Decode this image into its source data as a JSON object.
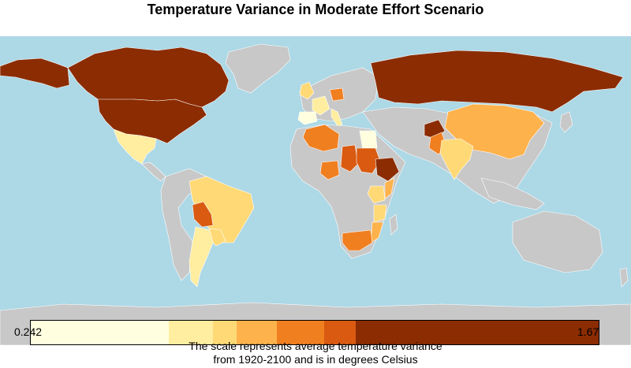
{
  "title": "Temperature Variance in Moderate Effort Scenario",
  "colors": {
    "ocean": "#add8e6",
    "no_data": "#c8c8c8",
    "border": "#ffffff"
  },
  "legend": {
    "min_label": "0.242",
    "max_label": "1.67",
    "bins": [
      {
        "from": 0.242,
        "to": 0.59,
        "color": "#ffffe0"
      },
      {
        "from": 0.59,
        "to": 0.7,
        "color": "#ffeda0"
      },
      {
        "from": 0.7,
        "to": 0.76,
        "color": "#fed976"
      },
      {
        "from": 0.76,
        "to": 0.86,
        "color": "#feb24c"
      },
      {
        "from": 0.86,
        "to": 0.98,
        "color": "#f07f20"
      },
      {
        "from": 0.98,
        "to": 1.06,
        "color": "#d95a10"
      },
      {
        "from": 1.06,
        "to": 1.67,
        "color": "#8b2c02"
      }
    ]
  },
  "caption": {
    "line1": "The scale represents average temperature variance",
    "line2": "from 1920-2100 and is in degrees Celsius"
  },
  "regions": [
    {
      "name": "Canada",
      "level": 6
    },
    {
      "name": "United States",
      "level": 6
    },
    {
      "name": "Alaska",
      "level": 6
    },
    {
      "name": "Russia",
      "level": 6
    },
    {
      "name": "Mexico",
      "level": 1
    },
    {
      "name": "Brazil",
      "level": 2
    },
    {
      "name": "Bolivia",
      "level": 5
    },
    {
      "name": "Argentina",
      "level": 1
    },
    {
      "name": "Paraguay",
      "level": 2
    },
    {
      "name": "China",
      "level": 3
    },
    {
      "name": "India",
      "level": 2
    },
    {
      "name": "Afghanistan",
      "level": 6
    },
    {
      "name": "Pakistan",
      "level": 4
    },
    {
      "name": "Algeria",
      "level": 4
    },
    {
      "name": "Egypt",
      "level": 0
    },
    {
      "name": "Chad",
      "level": 5
    },
    {
      "name": "Sudan",
      "level": 5
    },
    {
      "name": "Ethiopia",
      "level": 6
    },
    {
      "name": "Nigeria",
      "level": 4
    },
    {
      "name": "Kenya",
      "level": 2
    },
    {
      "name": "Tanzania",
      "level": 2
    },
    {
      "name": "Mozambique",
      "level": 3
    },
    {
      "name": "South Africa",
      "level": 4
    },
    {
      "name": "France",
      "level": 1
    },
    {
      "name": "Spain",
      "level": 0
    },
    {
      "name": "Italy",
      "level": 1
    },
    {
      "name": "Poland",
      "level": 4
    },
    {
      "name": "Ireland",
      "level": 2
    },
    {
      "name": "Somalia",
      "level": 3
    }
  ]
}
